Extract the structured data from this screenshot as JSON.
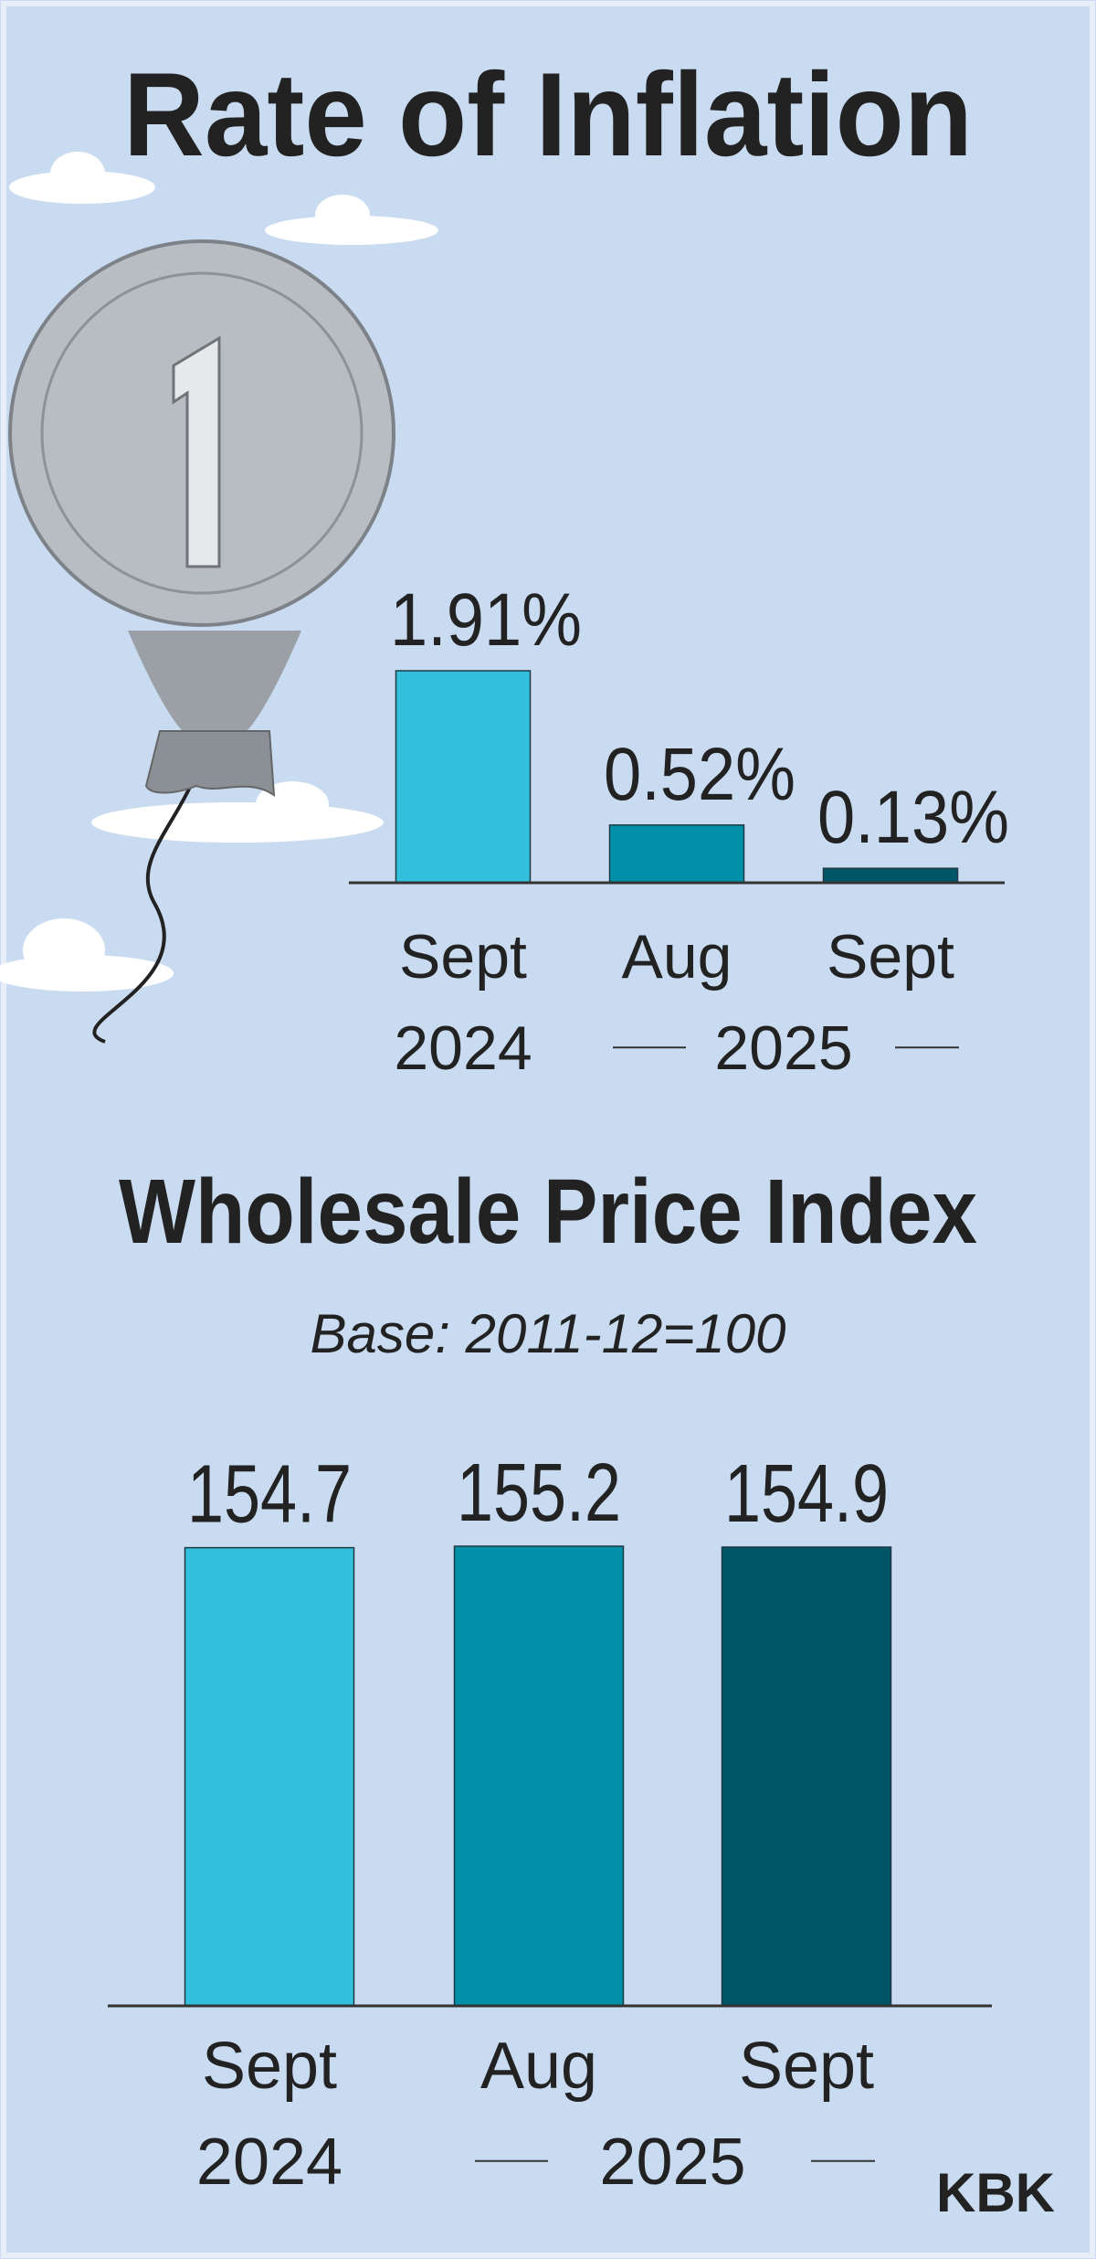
{
  "chart_data": [
    {
      "type": "bar",
      "title": "Rate of Inflation",
      "categories": [
        "Sept",
        "Aug",
        "Sept"
      ],
      "year_labels": [
        "2024",
        "2025"
      ],
      "values": [
        1.91,
        0.52,
        0.13
      ],
      "value_labels": [
        "1.91%",
        "0.52%",
        "0.13%"
      ],
      "colors": [
        "#33c0dd",
        "#0090a8",
        "#005566"
      ]
    },
    {
      "type": "bar",
      "title": "Wholesale Price Index",
      "subtitle": "Base: 2011-12=100",
      "categories": [
        "Sept",
        "Aug",
        "Sept"
      ],
      "year_labels": [
        "2024",
        "2025"
      ],
      "values": [
        154.7,
        155.2,
        154.9
      ],
      "colors": [
        "#33c0dd",
        "#0090a8",
        "#005566"
      ]
    }
  ],
  "credit": "KBK"
}
